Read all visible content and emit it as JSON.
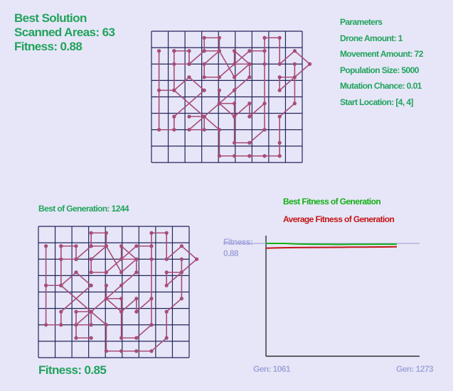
{
  "best_solution": {
    "title": "Best Solution",
    "scanned_label": "Scanned Areas: 63",
    "fitness_label": "Fitness: 0.88"
  },
  "parameters": {
    "title": "Parameters",
    "drone_amount": "Drone Amount: 1",
    "movement_amount": "Movement Amount: 72",
    "population_size": "Population Size: 5000",
    "mutation_chance": "Mutation Chance: 0.01",
    "start_location": "Start Location: [4, 4]"
  },
  "generation": {
    "label": "Best of Generation: 1244",
    "fitness_label": "Fitness: 0.85"
  },
  "chart": {
    "legend_best": "Best Fitness of Generation",
    "legend_avg": "Average Fitness of Generation",
    "fitness_line_label": "Fitness:\n0.88",
    "gen_start_label": "Gen: 1061",
    "gen_end_label": "Gen: 1273"
  },
  "colors": {
    "grid": "#24245a",
    "path": "#a84c78",
    "text_green": "#22a35c",
    "best_series": "#13b013",
    "avg_series": "#c41414",
    "reference_line": "#a6a6dc",
    "background": "#e6e6f8"
  },
  "chart_data": {
    "type": "line",
    "x": [
      1061,
      1273
    ],
    "xlim": [
      1061,
      1273
    ],
    "ylim": [
      0,
      1
    ],
    "reference_value": 0.88,
    "series": [
      {
        "name": "Best Fitness of Generation",
        "x": [
          1061,
          1090,
          1110,
          1130,
          1160,
          1180,
          1200,
          1230,
          1250,
          1273
        ],
        "values": [
          0.88,
          0.88,
          0.875,
          0.873,
          0.872,
          0.871,
          0.872,
          0.872,
          0.873,
          0.873
        ]
      },
      {
        "name": "Average Fitness of Generation",
        "x": [
          1061,
          1090,
          1110,
          1130,
          1160,
          1180,
          1200,
          1230,
          1250,
          1273
        ],
        "values": [
          0.838,
          0.842,
          0.843,
          0.844,
          0.845,
          0.846,
          0.847,
          0.848,
          0.849,
          0.85
        ]
      }
    ]
  },
  "best_path": [
    [
      1,
      1
    ],
    [
      1,
      2
    ],
    [
      2,
      2
    ],
    [
      2,
      1
    ],
    [
      1,
      1
    ],
    [
      1,
      4
    ],
    [
      0,
      4
    ],
    [
      0,
      1
    ],
    [
      0,
      7
    ],
    [
      1,
      7
    ],
    [
      1,
      6
    ],
    [
      3,
      4
    ],
    [
      2,
      3
    ],
    [
      1,
      4
    ],
    [
      3,
      6
    ],
    [
      3,
      7
    ],
    [
      2,
      7
    ],
    [
      3,
      6
    ],
    [
      4,
      7
    ],
    [
      4,
      9
    ],
    [
      5,
      9
    ],
    [
      6,
      9
    ],
    [
      7,
      9
    ],
    [
      8,
      9
    ],
    [
      8,
      8
    ],
    [
      8,
      6
    ],
    [
      9,
      5
    ],
    [
      9,
      2
    ],
    [
      9,
      3
    ],
    [
      8,
      3
    ],
    [
      8,
      4
    ],
    [
      10,
      2
    ],
    [
      9,
      1
    ],
    [
      8,
      2
    ],
    [
      8,
      0
    ],
    [
      7,
      0
    ],
    [
      7,
      2
    ],
    [
      7,
      7
    ],
    [
      6,
      8
    ],
    [
      5,
      8
    ],
    [
      5,
      6
    ],
    [
      6,
      5
    ],
    [
      6,
      6
    ],
    [
      7,
      5
    ],
    [
      7,
      1
    ],
    [
      6,
      1
    ],
    [
      4,
      3
    ],
    [
      3,
      3
    ],
    [
      3,
      2
    ],
    [
      4,
      1
    ],
    [
      4,
      0
    ],
    [
      3,
      0
    ],
    [
      3,
      1
    ],
    [
      2,
      2
    ],
    [
      3,
      1
    ],
    [
      4,
      1
    ],
    [
      5,
      3
    ],
    [
      6,
      2
    ],
    [
      5,
      2
    ],
    [
      5,
      1
    ],
    [
      6,
      2
    ],
    [
      6,
      3
    ],
    [
      5,
      4
    ],
    [
      5,
      4
    ],
    [
      4,
      5
    ],
    [
      4,
      4
    ],
    [
      4,
      5
    ],
    [
      5,
      6
    ],
    [
      5,
      5
    ],
    [
      4,
      5
    ],
    [
      3,
      6
    ],
    [
      2,
      6
    ]
  ],
  "gen_path": [
    [
      1,
      1
    ],
    [
      1,
      2
    ],
    [
      2,
      2
    ],
    [
      2,
      1
    ],
    [
      1,
      1
    ],
    [
      1,
      4
    ],
    [
      0,
      4
    ],
    [
      0,
      1
    ],
    [
      0,
      7
    ],
    [
      1,
      7
    ],
    [
      1,
      6
    ],
    [
      3,
      4
    ],
    [
      2,
      3
    ],
    [
      1,
      4
    ],
    [
      3,
      6
    ],
    [
      3,
      7
    ],
    [
      2,
      7
    ],
    [
      3,
      6
    ],
    [
      4,
      7
    ],
    [
      4,
      9
    ],
    [
      5,
      9
    ],
    [
      6,
      9
    ],
    [
      7,
      9
    ],
    [
      8,
      8
    ],
    [
      8,
      6
    ],
    [
      9,
      5
    ],
    [
      9,
      2
    ],
    [
      9,
      3
    ],
    [
      8,
      3
    ],
    [
      8,
      4
    ],
    [
      10,
      2
    ],
    [
      9,
      1
    ],
    [
      8,
      2
    ],
    [
      8,
      0
    ],
    [
      7,
      0
    ],
    [
      7,
      2
    ],
    [
      7,
      7
    ],
    [
      6,
      8
    ],
    [
      5,
      8
    ],
    [
      5,
      6
    ],
    [
      6,
      5
    ],
    [
      6,
      6
    ],
    [
      7,
      5
    ],
    [
      7,
      1
    ],
    [
      6,
      1
    ],
    [
      4,
      3
    ],
    [
      3,
      3
    ],
    [
      3,
      2
    ],
    [
      4,
      1
    ],
    [
      4,
      0
    ],
    [
      3,
      0
    ],
    [
      3,
      1
    ],
    [
      2,
      2
    ],
    [
      3,
      1
    ],
    [
      4,
      1
    ],
    [
      5,
      3
    ],
    [
      6,
      2
    ],
    [
      5,
      2
    ],
    [
      5,
      1
    ],
    [
      6,
      2
    ],
    [
      6,
      3
    ],
    [
      5,
      4
    ],
    [
      4,
      5
    ],
    [
      4,
      4
    ],
    [
      4,
      5
    ],
    [
      5,
      6
    ],
    [
      5,
      5
    ],
    [
      4,
      5
    ],
    [
      3,
      6
    ],
    [
      2,
      6
    ],
    [
      2,
      8
    ],
    [
      3,
      8
    ]
  ]
}
